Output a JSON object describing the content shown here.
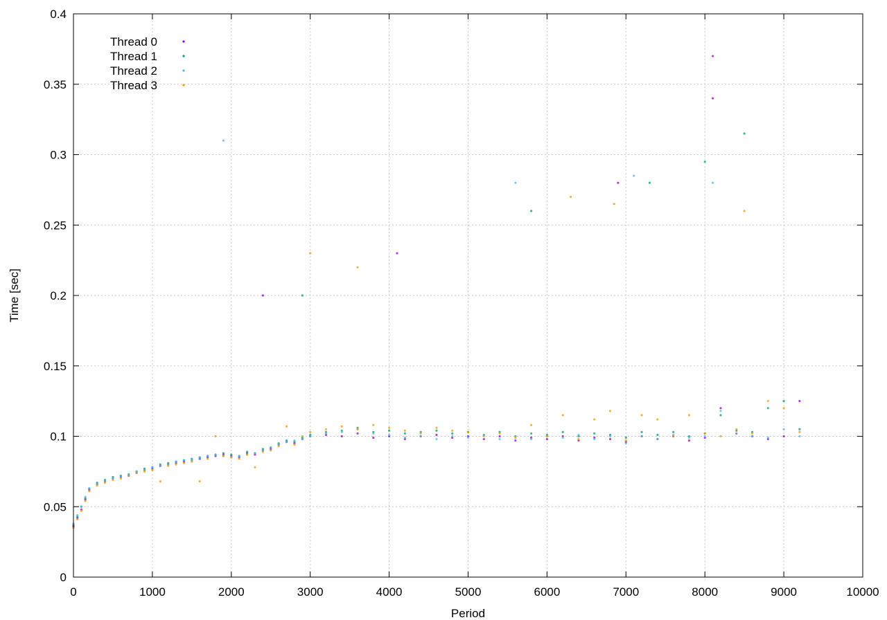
{
  "chart_data": {
    "type": "scatter",
    "title": "",
    "xlabel": "Period",
    "ylabel": "Time [sec]",
    "xlim": [
      0,
      10000
    ],
    "ylim": [
      0,
      0.4
    ],
    "xticks": [
      0,
      1000,
      2000,
      3000,
      4000,
      5000,
      6000,
      7000,
      8000,
      9000,
      10000
    ],
    "yticks": [
      0,
      0.05,
      0.1,
      0.15,
      0.2,
      0.25,
      0.3,
      0.35,
      0.4
    ],
    "grid": true,
    "legend_position": "top-left",
    "series": [
      {
        "name": "Thread 0",
        "color": "#9400d3",
        "marker": "dot",
        "points": [
          [
            0,
            0.036
          ],
          [
            50,
            0.042
          ],
          [
            100,
            0.048
          ],
          [
            150,
            0.055
          ],
          [
            200,
            0.062
          ],
          [
            300,
            0.066
          ],
          [
            400,
            0.068
          ],
          [
            500,
            0.07
          ],
          [
            600,
            0.071
          ],
          [
            700,
            0.072
          ],
          [
            800,
            0.074
          ],
          [
            900,
            0.076
          ],
          [
            1000,
            0.077
          ],
          [
            1100,
            0.079
          ],
          [
            1200,
            0.08
          ],
          [
            1300,
            0.081
          ],
          [
            1400,
            0.082
          ],
          [
            1500,
            0.083
          ],
          [
            1600,
            0.084
          ],
          [
            1700,
            0.085
          ],
          [
            1800,
            0.086
          ],
          [
            1900,
            0.087
          ],
          [
            2000,
            0.086
          ],
          [
            2100,
            0.085
          ],
          [
            2200,
            0.088
          ],
          [
            2300,
            0.087
          ],
          [
            2400,
            0.09
          ],
          [
            2500,
            0.091
          ],
          [
            2600,
            0.094
          ],
          [
            2700,
            0.096
          ],
          [
            2800,
            0.095
          ],
          [
            2900,
            0.098
          ],
          [
            3000,
            0.1
          ],
          [
            3200,
            0.101
          ],
          [
            3400,
            0.1
          ],
          [
            3600,
            0.102
          ],
          [
            3800,
            0.099
          ],
          [
            4000,
            0.1
          ],
          [
            4200,
            0.098
          ],
          [
            4400,
            0.1
          ],
          [
            4600,
            0.101
          ],
          [
            4800,
            0.099
          ],
          [
            5000,
            0.1
          ],
          [
            5200,
            0.098
          ],
          [
            5400,
            0.1
          ],
          [
            5600,
            0.097
          ],
          [
            5800,
            0.099
          ],
          [
            6000,
            0.098
          ],
          [
            6200,
            0.1
          ],
          [
            6400,
            0.097
          ],
          [
            6600,
            0.099
          ],
          [
            6800,
            0.098
          ],
          [
            7000,
            0.096
          ],
          [
            7200,
            0.1
          ],
          [
            7400,
            0.098
          ],
          [
            7600,
            0.1
          ],
          [
            7800,
            0.097
          ],
          [
            8000,
            0.099
          ],
          [
            8200,
            0.12
          ],
          [
            8400,
            0.102
          ],
          [
            8600,
            0.1
          ],
          [
            8800,
            0.098
          ],
          [
            9000,
            0.1
          ],
          [
            9200,
            0.125
          ],
          [
            2400,
            0.2
          ],
          [
            4100,
            0.23
          ],
          [
            6900,
            0.28
          ],
          [
            8100,
            0.37
          ],
          [
            8100,
            0.34
          ]
        ]
      },
      {
        "name": "Thread 1",
        "color": "#009e73",
        "marker": "dot",
        "points": [
          [
            0,
            0.037
          ],
          [
            50,
            0.043
          ],
          [
            100,
            0.05
          ],
          [
            150,
            0.056
          ],
          [
            200,
            0.063
          ],
          [
            300,
            0.067
          ],
          [
            400,
            0.069
          ],
          [
            500,
            0.071
          ],
          [
            600,
            0.072
          ],
          [
            700,
            0.073
          ],
          [
            800,
            0.075
          ],
          [
            900,
            0.077
          ],
          [
            1000,
            0.078
          ],
          [
            1100,
            0.08
          ],
          [
            1200,
            0.081
          ],
          [
            1300,
            0.082
          ],
          [
            1400,
            0.083
          ],
          [
            1500,
            0.084
          ],
          [
            1600,
            0.085
          ],
          [
            1700,
            0.086
          ],
          [
            1800,
            0.087
          ],
          [
            1900,
            0.088
          ],
          [
            2000,
            0.087
          ],
          [
            2100,
            0.086
          ],
          [
            2200,
            0.089
          ],
          [
            2300,
            0.088
          ],
          [
            2400,
            0.091
          ],
          [
            2500,
            0.092
          ],
          [
            2600,
            0.095
          ],
          [
            2700,
            0.097
          ],
          [
            2800,
            0.096
          ],
          [
            2900,
            0.099
          ],
          [
            3000,
            0.101
          ],
          [
            3200,
            0.103
          ],
          [
            3400,
            0.104
          ],
          [
            3600,
            0.106
          ],
          [
            3800,
            0.103
          ],
          [
            4000,
            0.104
          ],
          [
            4200,
            0.102
          ],
          [
            4400,
            0.103
          ],
          [
            4600,
            0.104
          ],
          [
            4800,
            0.102
          ],
          [
            5000,
            0.103
          ],
          [
            5200,
            0.101
          ],
          [
            5400,
            0.103
          ],
          [
            5600,
            0.1
          ],
          [
            5800,
            0.102
          ],
          [
            6000,
            0.101
          ],
          [
            6200,
            0.103
          ],
          [
            6400,
            0.1
          ],
          [
            6600,
            0.102
          ],
          [
            6800,
            0.101
          ],
          [
            7000,
            0.099
          ],
          [
            7200,
            0.103
          ],
          [
            7400,
            0.101
          ],
          [
            7600,
            0.103
          ],
          [
            7800,
            0.1
          ],
          [
            8000,
            0.102
          ],
          [
            8200,
            0.115
          ],
          [
            8400,
            0.104
          ],
          [
            8600,
            0.103
          ],
          [
            8800,
            0.12
          ],
          [
            9000,
            0.125
          ],
          [
            9200,
            0.105
          ],
          [
            2900,
            0.2
          ],
          [
            5800,
            0.26
          ],
          [
            7300,
            0.28
          ],
          [
            8000,
            0.295
          ],
          [
            8500,
            0.315
          ]
        ]
      },
      {
        "name": "Thread 2",
        "color": "#56b4e9",
        "marker": "dot",
        "points": [
          [
            0,
            0.038
          ],
          [
            50,
            0.044
          ],
          [
            100,
            0.05
          ],
          [
            150,
            0.057
          ],
          [
            200,
            0.063
          ],
          [
            300,
            0.066
          ],
          [
            400,
            0.068
          ],
          [
            500,
            0.07
          ],
          [
            600,
            0.071
          ],
          [
            700,
            0.073
          ],
          [
            800,
            0.075
          ],
          [
            900,
            0.076
          ],
          [
            1000,
            0.078
          ],
          [
            1100,
            0.079
          ],
          [
            1200,
            0.08
          ],
          [
            1300,
            0.082
          ],
          [
            1400,
            0.083
          ],
          [
            1500,
            0.083
          ],
          [
            1600,
            0.085
          ],
          [
            1700,
            0.086
          ],
          [
            1800,
            0.087
          ],
          [
            1900,
            0.086
          ],
          [
            2000,
            0.085
          ],
          [
            2100,
            0.086
          ],
          [
            2200,
            0.087
          ],
          [
            2300,
            0.088
          ],
          [
            2400,
            0.09
          ],
          [
            2500,
            0.092
          ],
          [
            2600,
            0.094
          ],
          [
            2700,
            0.096
          ],
          [
            2800,
            0.097
          ],
          [
            2900,
            0.098
          ],
          [
            3000,
            0.1
          ],
          [
            3200,
            0.102
          ],
          [
            3400,
            0.103
          ],
          [
            3600,
            0.105
          ],
          [
            3800,
            0.102
          ],
          [
            4000,
            0.101
          ],
          [
            4200,
            0.099
          ],
          [
            4400,
            0.1
          ],
          [
            4600,
            0.098
          ],
          [
            4800,
            0.1
          ],
          [
            5000,
            0.099
          ],
          [
            5200,
            0.101
          ],
          [
            5400,
            0.098
          ],
          [
            5600,
            0.1
          ],
          [
            5800,
            0.098
          ],
          [
            6000,
            0.1
          ],
          [
            6200,
            0.099
          ],
          [
            6400,
            0.101
          ],
          [
            6600,
            0.098
          ],
          [
            6800,
            0.1
          ],
          [
            7000,
            0.095
          ],
          [
            7200,
            0.1
          ],
          [
            7400,
            0.098
          ],
          [
            7600,
            0.101
          ],
          [
            7800,
            0.099
          ],
          [
            8000,
            0.1
          ],
          [
            8200,
            0.118
          ],
          [
            8400,
            0.102
          ],
          [
            8600,
            0.1
          ],
          [
            8800,
            0.099
          ],
          [
            9000,
            0.105
          ],
          [
            9200,
            0.1
          ],
          [
            1900,
            0.31
          ],
          [
            5600,
            0.28
          ],
          [
            7100,
            0.285
          ],
          [
            8100,
            0.28
          ]
        ]
      },
      {
        "name": "Thread 3",
        "color": "#e69f00",
        "marker": "dot",
        "points": [
          [
            0,
            0.035
          ],
          [
            50,
            0.041
          ],
          [
            100,
            0.047
          ],
          [
            150,
            0.054
          ],
          [
            200,
            0.061
          ],
          [
            300,
            0.065
          ],
          [
            400,
            0.067
          ],
          [
            500,
            0.069
          ],
          [
            600,
            0.07
          ],
          [
            700,
            0.072
          ],
          [
            800,
            0.074
          ],
          [
            900,
            0.075
          ],
          [
            1000,
            0.076
          ],
          [
            1100,
            0.068
          ],
          [
            1200,
            0.079
          ],
          [
            1300,
            0.08
          ],
          [
            1400,
            0.081
          ],
          [
            1500,
            0.082
          ],
          [
            1600,
            0.068
          ],
          [
            1700,
            0.084
          ],
          [
            1800,
            0.1
          ],
          [
            1900,
            0.086
          ],
          [
            2000,
            0.085
          ],
          [
            2100,
            0.084
          ],
          [
            2200,
            0.087
          ],
          [
            2300,
            0.078
          ],
          [
            2400,
            0.089
          ],
          [
            2500,
            0.09
          ],
          [
            2600,
            0.093
          ],
          [
            2700,
            0.107
          ],
          [
            2800,
            0.094
          ],
          [
            2900,
            0.1
          ],
          [
            3000,
            0.103
          ],
          [
            3200,
            0.105
          ],
          [
            3400,
            0.107
          ],
          [
            3600,
            0.105
          ],
          [
            3800,
            0.108
          ],
          [
            4000,
            0.106
          ],
          [
            4200,
            0.104
          ],
          [
            4400,
            0.102
          ],
          [
            4600,
            0.106
          ],
          [
            4800,
            0.104
          ],
          [
            5000,
            0.103
          ],
          [
            5200,
            0.1
          ],
          [
            5400,
            0.102
          ],
          [
            5600,
            0.099
          ],
          [
            5800,
            0.108
          ],
          [
            6000,
            0.1
          ],
          [
            6200,
            0.115
          ],
          [
            6400,
            0.098
          ],
          [
            6600,
            0.112
          ],
          [
            6800,
            0.118
          ],
          [
            7000,
            0.097
          ],
          [
            7200,
            0.115
          ],
          [
            7400,
            0.112
          ],
          [
            7600,
            0.1
          ],
          [
            7800,
            0.115
          ],
          [
            8000,
            0.102
          ],
          [
            8200,
            0.1
          ],
          [
            8400,
            0.105
          ],
          [
            8600,
            0.102
          ],
          [
            8800,
            0.125
          ],
          [
            9000,
            0.12
          ],
          [
            9200,
            0.103
          ],
          [
            3000,
            0.23
          ],
          [
            3600,
            0.22
          ],
          [
            6300,
            0.27
          ],
          [
            6850,
            0.265
          ],
          [
            8500,
            0.26
          ]
        ]
      }
    ]
  }
}
